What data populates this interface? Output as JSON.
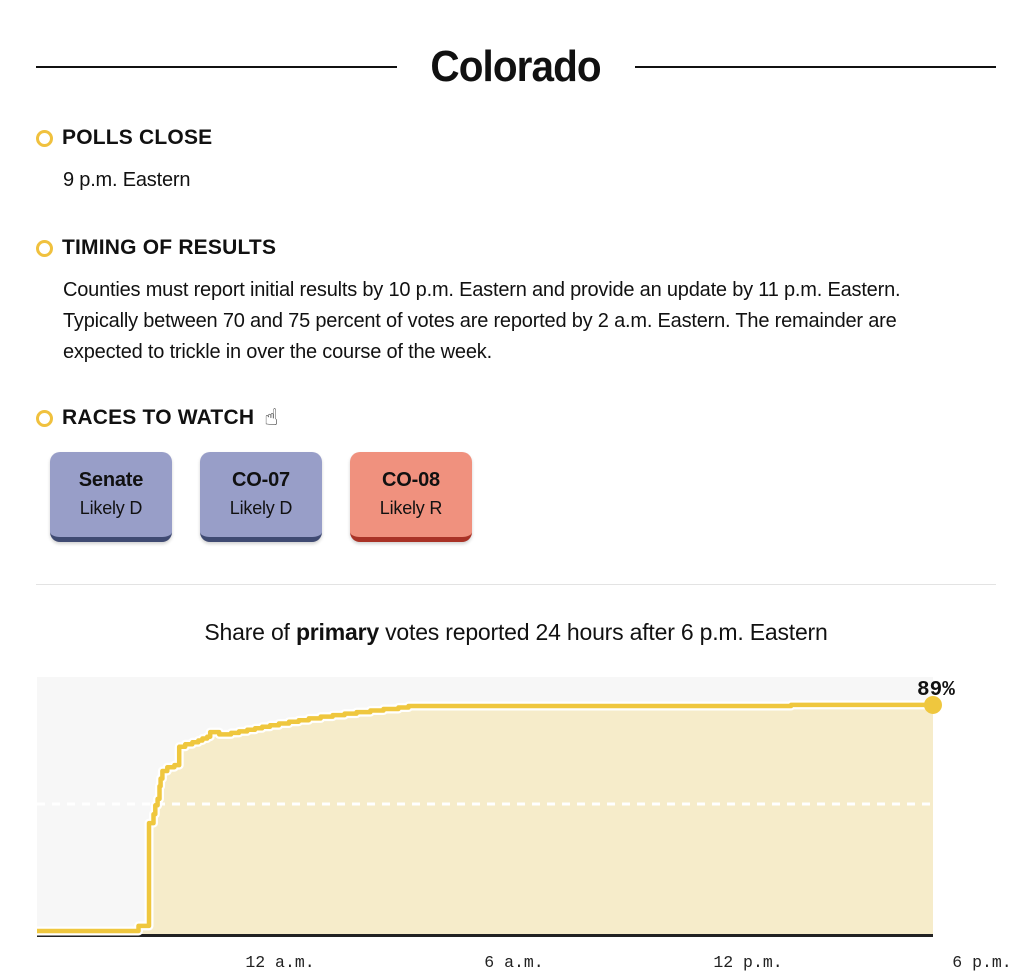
{
  "page": {
    "title": "Colorado"
  },
  "sections": {
    "polls_close": {
      "heading": "POLLS CLOSE",
      "body": "9 p.m. Eastern"
    },
    "timing": {
      "heading": "TIMING OF RESULTS",
      "body": "Counties must report initial results by 10 p.m. Eastern and provide an update by 11 p.m. Eastern. Typically between 70 and 75 percent of votes are reported by 2 a.m. Eastern. The remainder are expected to trickle in over the course of the week."
    },
    "races": {
      "heading": "RACES TO WATCH",
      "icon": "pointing-hand-icon",
      "icon_glyph": "☝",
      "badges": [
        {
          "race": "Senate",
          "rating": "Likely D",
          "party": "D"
        },
        {
          "race": "CO-07",
          "rating": "Likely D",
          "party": "D"
        },
        {
          "race": "CO-08",
          "rating": "Likely R",
          "party": "R"
        }
      ]
    }
  },
  "chart_title": {
    "prefix": "Share of ",
    "bold": "primary",
    "suffix": " votes reported 24 hours after 6 p.m. Eastern"
  },
  "colors": {
    "accent_yellow": "#f0c13e",
    "line": "#efc73e",
    "fill": "#f6ecca",
    "plot_bg": "#f7f7f7",
    "axis": "#222222",
    "dem_badge": "#989ec8",
    "dem_badge_edge": "#3f4a72",
    "rep_badge": "#f0917e",
    "rep_badge_edge": "#a93226"
  },
  "chart_data": {
    "type": "area",
    "title": "Share of primary votes reported 24 hours after 6 p.m. Eastern",
    "x_unit": "hours after 6 p.m. Eastern",
    "x_range": [
      0,
      24
    ],
    "y_range": [
      0,
      100
    ],
    "grid": "single dotted reference line",
    "reference_line_pct": 50,
    "end_value": 89,
    "end_label": "89%",
    "x_ticks": [
      {
        "hour": 6,
        "label": "12 a.m."
      },
      {
        "hour": 12,
        "label": "6 a.m."
      },
      {
        "hour": 18,
        "label": "12 p.m."
      },
      {
        "hour": 24,
        "label": "6 p.m."
      }
    ],
    "points": [
      [
        0,
        0
      ],
      [
        2.72,
        0
      ],
      [
        2.72,
        2
      ],
      [
        3.0,
        2
      ],
      [
        3.0,
        42.5
      ],
      [
        3.12,
        42.5
      ],
      [
        3.12,
        46
      ],
      [
        3.17,
        46
      ],
      [
        3.17,
        49.5
      ],
      [
        3.23,
        49.5
      ],
      [
        3.23,
        52
      ],
      [
        3.28,
        52
      ],
      [
        3.28,
        57
      ],
      [
        3.31,
        57
      ],
      [
        3.31,
        60
      ],
      [
        3.36,
        60
      ],
      [
        3.36,
        63
      ],
      [
        3.49,
        63
      ],
      [
        3.49,
        64.5
      ],
      [
        3.68,
        64.5
      ],
      [
        3.68,
        65.3
      ],
      [
        3.81,
        65.3
      ],
      [
        3.81,
        72.5
      ],
      [
        3.97,
        72.5
      ],
      [
        3.97,
        73.5
      ],
      [
        4.16,
        73.5
      ],
      [
        4.16,
        74.3
      ],
      [
        4.32,
        74.3
      ],
      [
        4.32,
        75
      ],
      [
        4.43,
        75
      ],
      [
        4.43,
        75.8
      ],
      [
        4.56,
        75.8
      ],
      [
        4.56,
        76.5
      ],
      [
        4.64,
        76.5
      ],
      [
        4.64,
        78.3
      ],
      [
        4.88,
        78.3
      ],
      [
        4.88,
        77.4
      ],
      [
        5.2,
        77.4
      ],
      [
        5.2,
        78
      ],
      [
        5.41,
        78
      ],
      [
        5.41,
        78.6
      ],
      [
        5.63,
        78.6
      ],
      [
        5.63,
        79.2
      ],
      [
        5.84,
        79.2
      ],
      [
        5.84,
        79.8
      ],
      [
        6.03,
        79.8
      ],
      [
        6.03,
        80.4
      ],
      [
        6.24,
        80.4
      ],
      [
        6.24,
        81
      ],
      [
        6.48,
        81
      ],
      [
        6.48,
        81.7
      ],
      [
        6.75,
        81.7
      ],
      [
        6.75,
        82.4
      ],
      [
        7.01,
        82.4
      ],
      [
        7.01,
        83
      ],
      [
        7.28,
        83
      ],
      [
        7.28,
        83.7
      ],
      [
        7.6,
        83.7
      ],
      [
        7.6,
        84.4
      ],
      [
        7.92,
        84.4
      ],
      [
        7.92,
        85
      ],
      [
        8.24,
        85
      ],
      [
        8.24,
        85.6
      ],
      [
        8.56,
        85.6
      ],
      [
        8.56,
        86.2
      ],
      [
        8.93,
        86.2
      ],
      [
        8.93,
        86.8
      ],
      [
        9.28,
        86.8
      ],
      [
        9.28,
        87.4
      ],
      [
        9.68,
        87.4
      ],
      [
        9.68,
        88
      ],
      [
        9.95,
        88
      ],
      [
        9.95,
        88.6
      ],
      [
        20.2,
        88.6
      ],
      [
        20.2,
        89
      ],
      [
        24,
        89
      ]
    ]
  }
}
